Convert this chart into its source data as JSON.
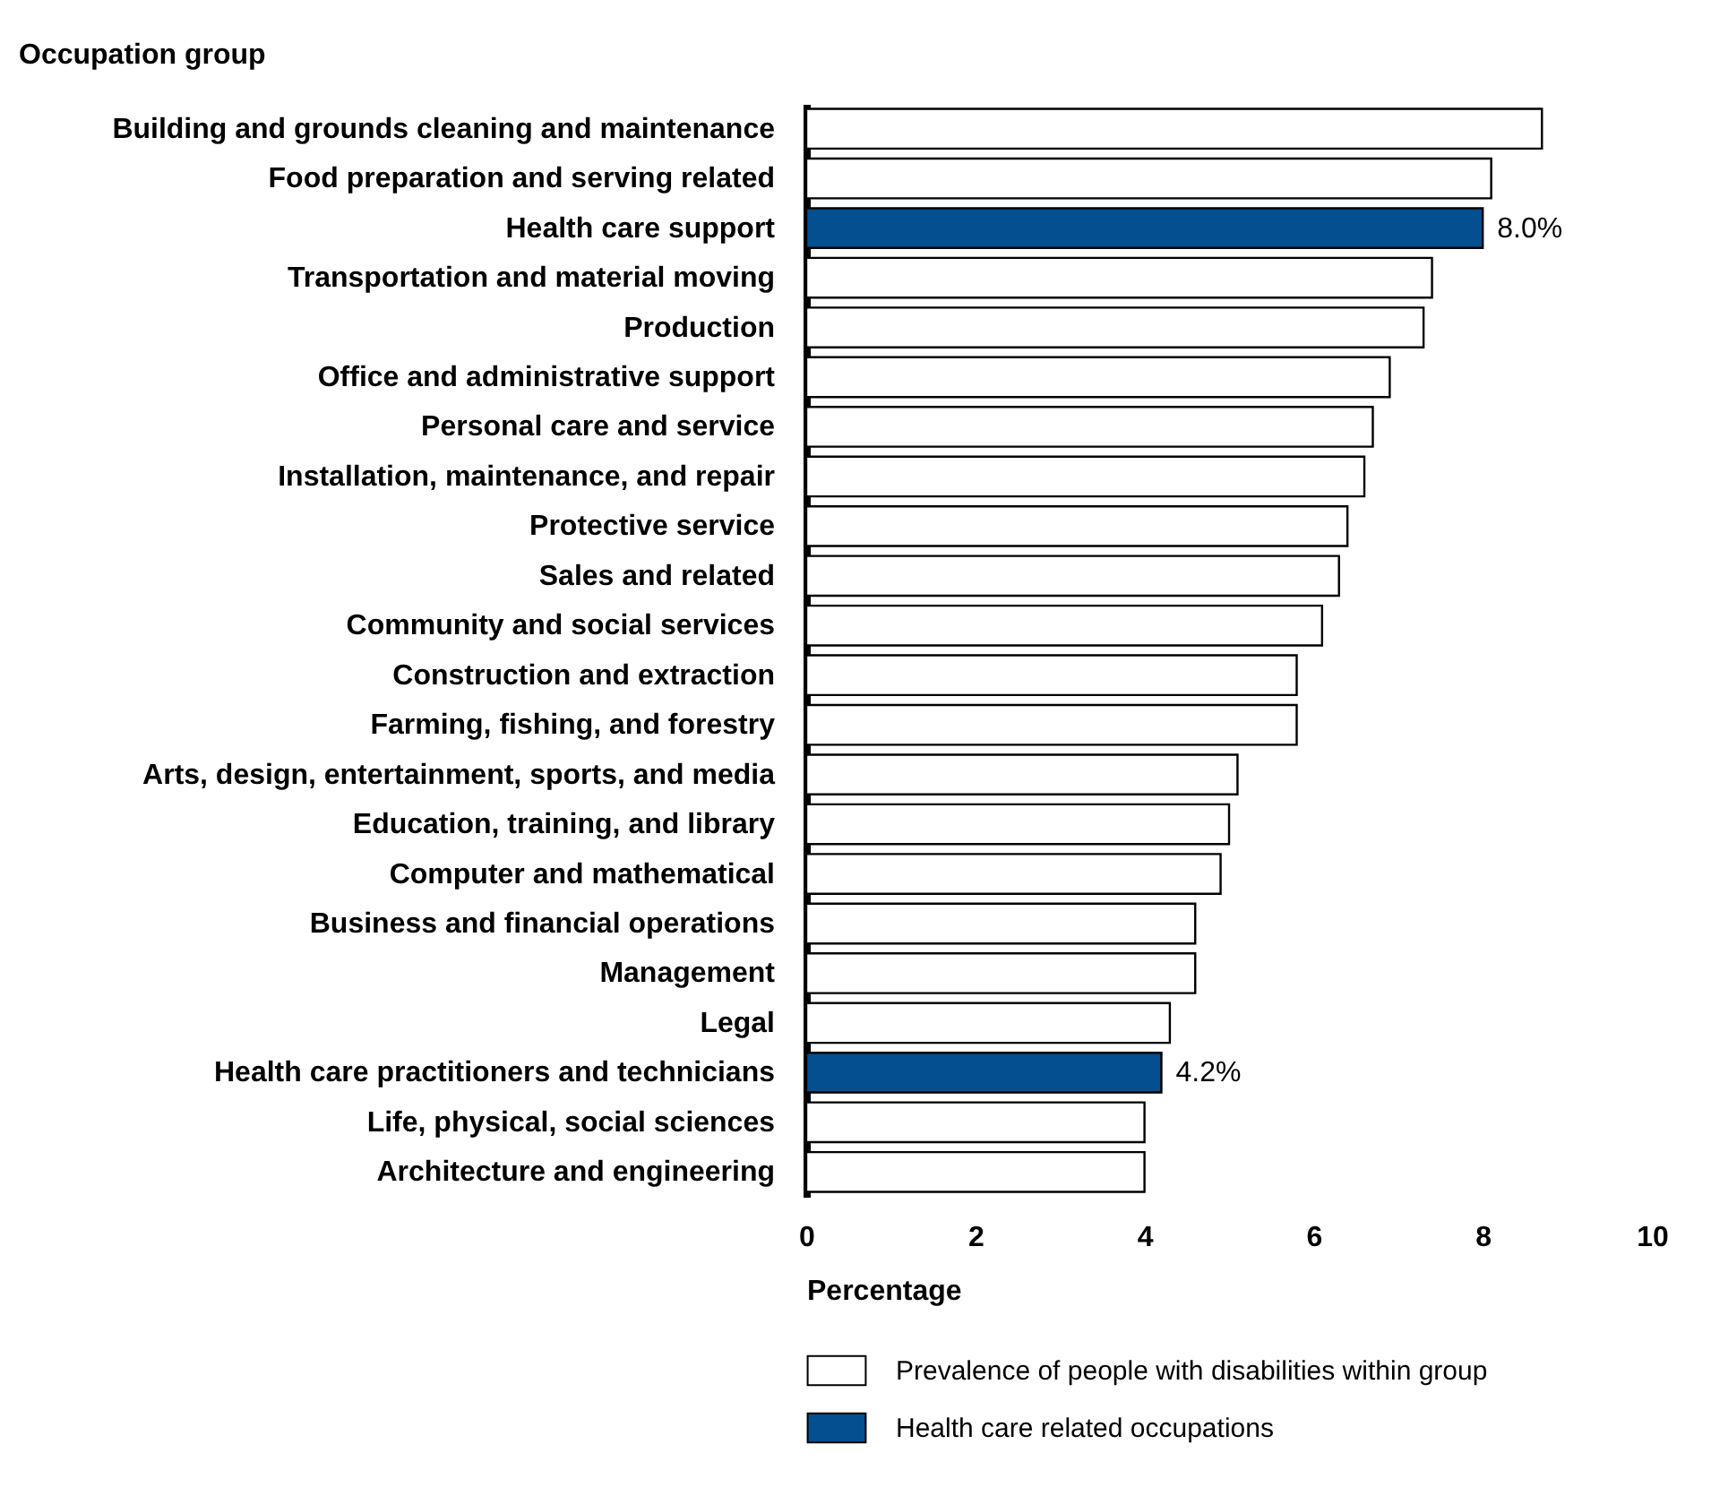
{
  "chart_data": {
    "type": "bar",
    "orientation": "horizontal",
    "ylabel": "Occupation group",
    "xlabel": "Percentage",
    "categories": [
      "Building and grounds cleaning and maintenance",
      "Food preparation and serving related",
      "Health care support",
      "Transportation and material moving",
      "Production",
      "Office and administrative support",
      "Personal care and service",
      "Installation, maintenance, and repair",
      "Protective service",
      "Sales and related",
      "Community and social services",
      "Construction and extraction",
      "Farming, fishing, and forestry",
      "Arts, design, entertainment, sports, and media",
      "Education, training, and library",
      "Computer and mathematical",
      "Business and financial operations",
      "Management",
      "Legal",
      "Health care practitioners and technicians",
      "Life, physical, social sciences",
      "Architecture and engineering"
    ],
    "series": [
      {
        "name": "Prevalence of people with disabilities within group",
        "color": "#ffffff",
        "values": [
          8.7,
          8.1,
          null,
          7.4,
          7.3,
          6.9,
          6.7,
          6.6,
          6.4,
          6.3,
          6.1,
          5.8,
          5.8,
          5.1,
          5.0,
          4.9,
          4.6,
          4.6,
          4.3,
          null,
          4.0,
          4.0
        ]
      },
      {
        "name": "Health care related occupations",
        "color": "#044f8f",
        "values": [
          null,
          null,
          8.0,
          null,
          null,
          null,
          null,
          null,
          null,
          null,
          null,
          null,
          null,
          null,
          null,
          null,
          null,
          null,
          null,
          4.2,
          null,
          null
        ],
        "value_labels": [
          null,
          null,
          "8.0%",
          null,
          null,
          null,
          null,
          null,
          null,
          null,
          null,
          null,
          null,
          null,
          null,
          null,
          null,
          null,
          null,
          "4.2%",
          null,
          null
        ]
      }
    ],
    "xlim": [
      0,
      10
    ],
    "xticks": [
      0,
      2,
      4,
      6,
      8,
      10
    ],
    "grid": false,
    "legend": "bottom"
  }
}
